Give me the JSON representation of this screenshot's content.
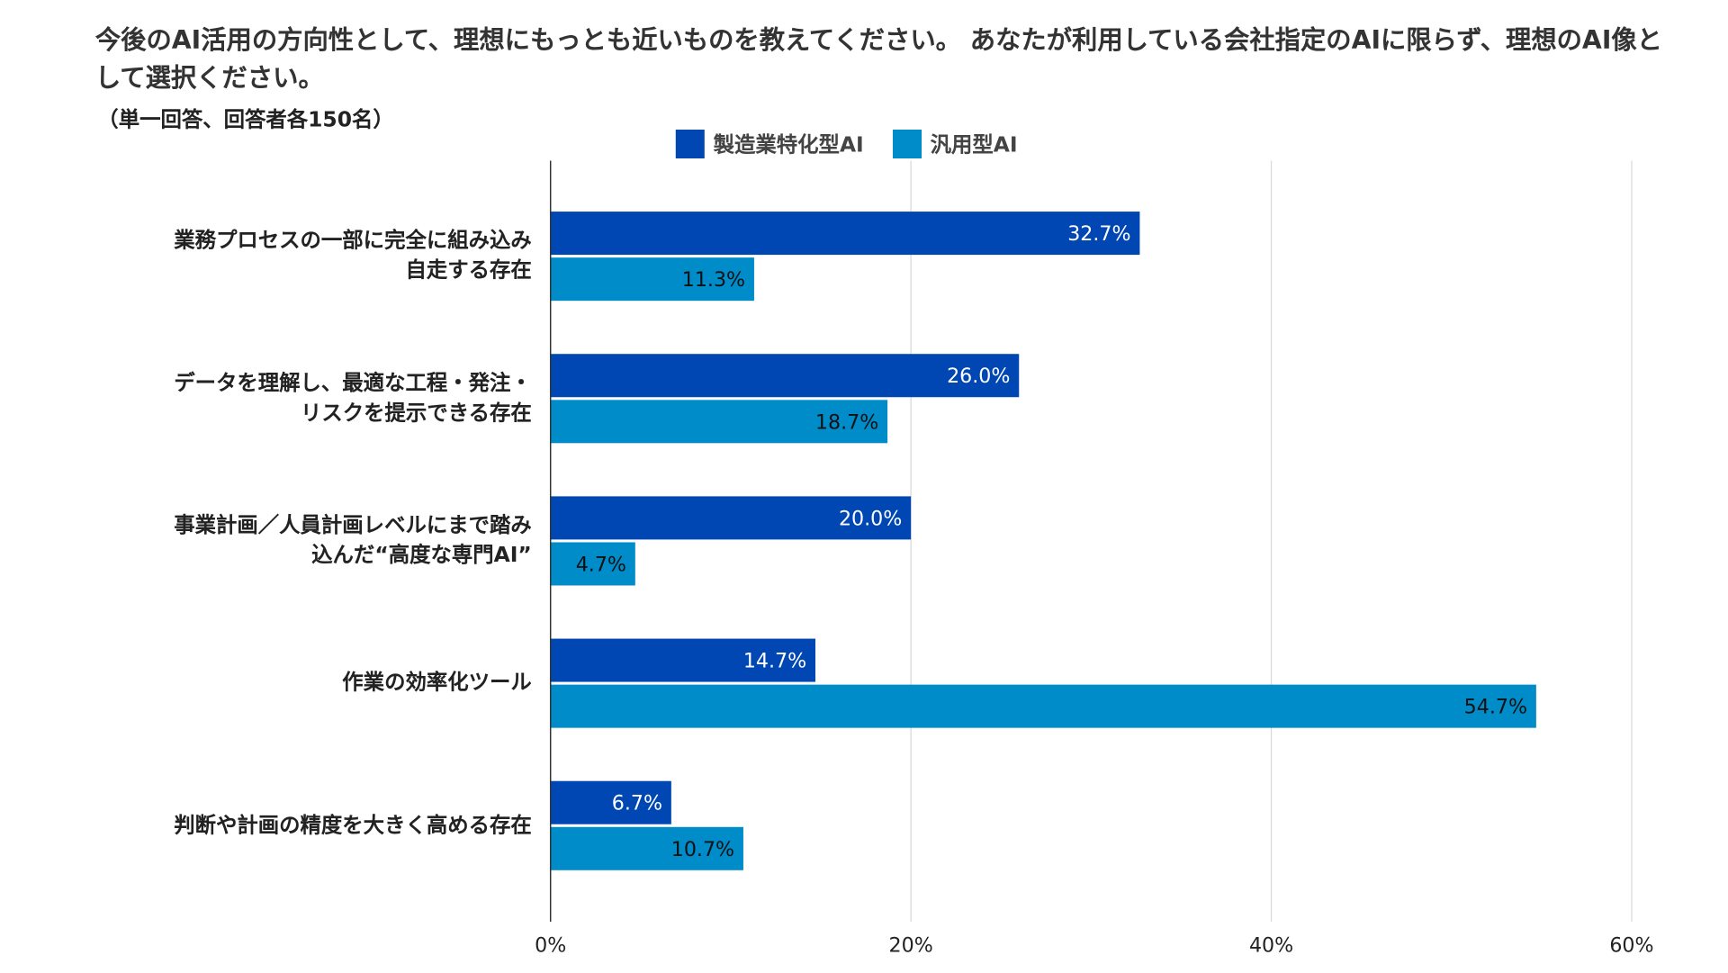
{
  "chart_data": {
    "type": "bar",
    "orientation": "horizontal",
    "title": "今後のAI活用の方向性として、理想にもっとも近いものを教えてください。 あなたが利用している会社指定のAIに限らず、理想のAI像として選択ください。",
    "subtitle": "（単一回答、回答者各150名）",
    "categories": [
      "業務プロセスの一部に完全に組み込み\n自走する存在",
      "データを理解し、最適な工程・発注・\nリスクを提示できる存在",
      "事業計画／人員計画レベルにまで踏み\n込んだ“高度な専門AI”",
      "作業の効率化ツール",
      "判断や計画の精度を大きく高める存在"
    ],
    "series": [
      {
        "name": "製造業特化型AI",
        "color": "#0047b3",
        "values": [
          32.7,
          26.0,
          20.0,
          14.7,
          6.7
        ],
        "labels": [
          "32.7%",
          "26.0%",
          "20.0%",
          "14.7%",
          "6.7%"
        ]
      },
      {
        "name": "汎用型AI",
        "color": "#008bc9",
        "values": [
          11.3,
          18.7,
          4.7,
          54.7,
          10.7
        ],
        "labels": [
          "11.3%",
          "18.7%",
          "4.7%",
          "54.7%",
          "10.7%"
        ]
      }
    ],
    "xlim": [
      0,
      60
    ],
    "xticks": [
      0,
      20,
      40,
      60
    ],
    "xtick_labels": [
      "0%",
      "20%",
      "40%",
      "60%"
    ],
    "grid": true,
    "legend": "top-center"
  }
}
